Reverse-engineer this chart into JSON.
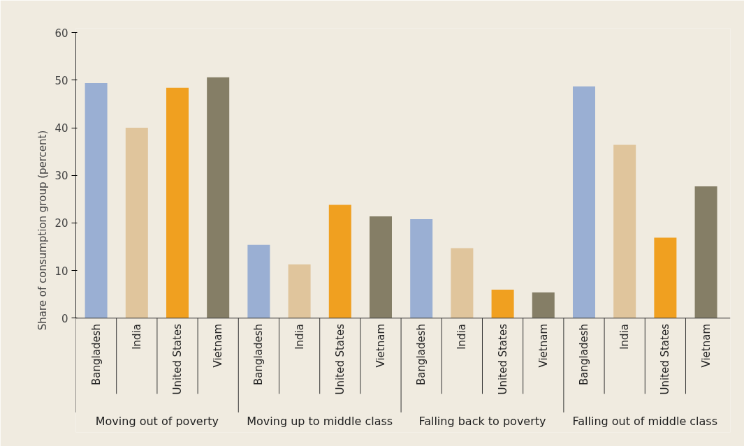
{
  "chart_data": {
    "type": "bar",
    "ylabel": "Share of consumption group (percent)",
    "categories": [
      "Bangladesh",
      "India",
      "United States",
      "Vietnam",
      "Bangladesh",
      "India",
      "United States",
      "Vietnam",
      "Bangladesh",
      "India",
      "United States",
      "Vietnam",
      "Bangladesh",
      "India",
      "United States",
      "Vietnam"
    ],
    "values": [
      49.4,
      40.0,
      48.4,
      50.6,
      15.4,
      11.3,
      23.8,
      21.4,
      20.8,
      14.7,
      6.0,
      5.4,
      48.7,
      36.4,
      16.9,
      27.7
    ],
    "colors": [
      "#9aafd3",
      "#e0c59c",
      "#f0a020",
      "#857e66",
      "#9aafd3",
      "#e0c59c",
      "#f0a020",
      "#857e66",
      "#9aafd3",
      "#e0c59c",
      "#f0a020",
      "#857e66",
      "#9aafd3",
      "#e0c59c",
      "#f0a020",
      "#857e66"
    ],
    "annotations": [
      "Moving out of poverty",
      "Moving up to middle class",
      "Falling back to poverty",
      "Falling out of middle class"
    ],
    "ylim": [
      0,
      60
    ],
    "yticks": [
      0,
      10,
      20,
      30,
      40,
      50,
      60
    ]
  }
}
